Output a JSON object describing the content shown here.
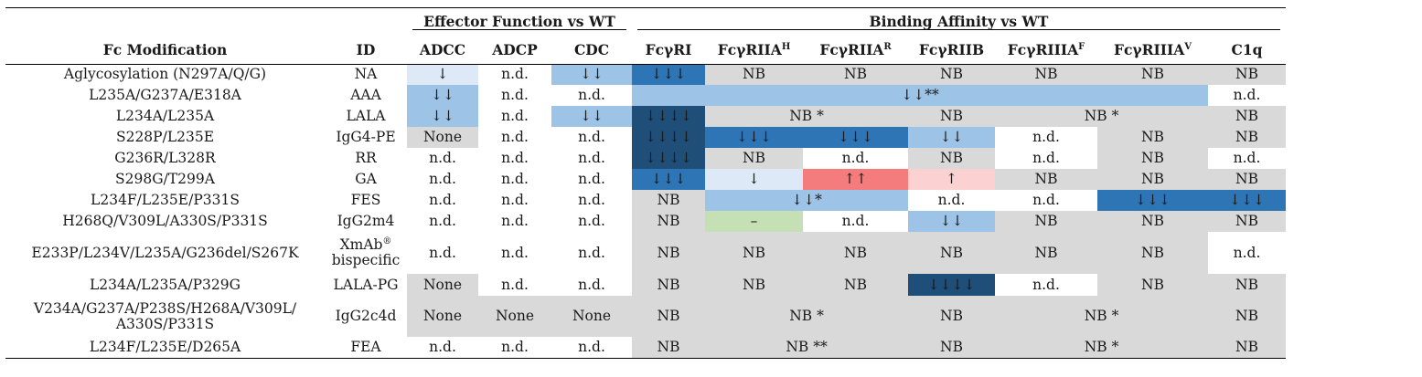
{
  "table": {
    "group_headers": {
      "effector": "Effector Function vs WT",
      "binding": "Binding Affinity vs WT"
    },
    "col_headers": {
      "mod": "Fc Modification",
      "id": "ID",
      "adcc": "ADCC",
      "adcp": "ADCP",
      "cdc": "CDC",
      "fcgri": "FcγRI",
      "fcgriia": "FcγRIIA",
      "fcgriia_h_sup": "H",
      "fcgriia_r_sup": "R",
      "fcgriib": "FcγRIIB",
      "fcgriiia": "FcγRIIIA",
      "fcgriiia_f_sup": "F",
      "fcgriiia_v_sup": "V",
      "c1q": "C1q"
    },
    "rows": [
      {
        "mod": "Aglycosylation (N297A/Q/G)",
        "id": "NA",
        "adcc": "↓",
        "adcp": "n.d.",
        "cdc": "↓↓",
        "fcgri": "↓↓↓",
        "fcgriia_h": "NB",
        "fcgriia_r": "NB",
        "fcgriib": "NB",
        "fcgriiia_f": "NB",
        "fcgriiia_v": "NB",
        "c1q": "NB"
      },
      {
        "mod": "L235A/G237A/E318A",
        "id": "AAA",
        "adcc": "↓↓",
        "adcp": "n.d.",
        "cdc": "n.d.",
        "span": "↓↓**",
        "c1q": "n.d."
      },
      {
        "mod": "L234A/L235A",
        "id": "LALA",
        "adcc": "↓↓",
        "adcp": "n.d.",
        "cdc": "↓↓",
        "fcgri": "↓↓↓↓",
        "fcgriia": "NB *",
        "fcgriib": "NB",
        "fcgriiia": "NB *",
        "c1q": "NB"
      },
      {
        "mod": "S228P/L235E",
        "id": "IgG4-PE",
        "adcc": "None",
        "adcp": "n.d.",
        "cdc": "n.d.",
        "fcgri": "↓↓↓↓",
        "fcgriia_h": "↓↓↓",
        "fcgriia_r": "↓↓↓",
        "fcgriib": "↓↓",
        "fcgriiia_f": "n.d.",
        "fcgriiia_v": "NB",
        "c1q": "NB"
      },
      {
        "mod": "G236R/L328R",
        "id": "RR",
        "adcc": "n.d.",
        "adcp": "n.d.",
        "cdc": "n.d.",
        "fcgri": "↓↓↓↓",
        "fcgriia_h": "NB",
        "fcgriia_r": "n.d.",
        "fcgriib": "NB",
        "fcgriiia_f": "n.d.",
        "fcgriiia_v": "NB",
        "c1q": "n.d."
      },
      {
        "mod": "S298G/T299A",
        "id": "GA",
        "adcc": "n.d.",
        "adcp": "n.d.",
        "cdc": "n.d.",
        "fcgri": "↓↓↓",
        "fcgriia_h": "↓",
        "fcgriia_r": "↑↑",
        "fcgriib": "↑",
        "fcgriiia_f": "NB",
        "fcgriiia_v": "NB",
        "c1q": "NB"
      },
      {
        "mod": "L234F/L235E/P331S",
        "id": "FES",
        "adcc": "n.d.",
        "adcp": "n.d.",
        "cdc": "n.d.",
        "fcgri": "NB",
        "fcgriia": "↓↓*",
        "fcgriib": "n.d.",
        "fcgriiia_f": "n.d.",
        "fcgriiia_v": "↓↓↓",
        "c1q": "↓↓↓"
      },
      {
        "mod": "H268Q/V309L/A330S/P331S",
        "id": "IgG2m4",
        "adcc": "n.d.",
        "adcp": "n.d.",
        "cdc": "n.d.",
        "fcgri": "NB",
        "fcgriia_h": "–",
        "fcgriia_r": "n.d.",
        "fcgriib": "↓↓",
        "fcgriiia_f": "NB",
        "fcgriiia_v": "NB",
        "c1q": "NB"
      },
      {
        "mod": "E233P/L234V/L235A/G236del/S267K",
        "id_line1": "XmAb",
        "id_sup": "®",
        "id_line2": "bispecific",
        "adcc": "n.d.",
        "adcp": "n.d.",
        "cdc": "n.d.",
        "fcgri": "NB",
        "fcgriia_h": "NB",
        "fcgriia_r": "NB",
        "fcgriib": "NB",
        "fcgriiia_f": "NB",
        "fcgriiia_v": "NB",
        "c1q": "n.d."
      },
      {
        "mod": "L234A/L235A/P329G",
        "id": "LALA-PG",
        "adcc": "None",
        "adcp": "n.d.",
        "cdc": "n.d.",
        "fcgri": "NB",
        "fcgriia_h": "NB",
        "fcgriia_r": "NB",
        "fcgriib": "↓↓↓↓",
        "fcgriiia_f": "n.d.",
        "fcgriiia_v": "NB",
        "c1q": "NB"
      },
      {
        "mod_line1": "V234A/G237A/P238S/H268A/V309L/",
        "mod_line2": "A330S/P331S",
        "id": "IgG2c4d",
        "adcc": "None",
        "adcp": "None",
        "cdc": "None",
        "fcgri": "NB",
        "fcgriia": "NB *",
        "fcgriib": "NB",
        "fcgriiia": "NB *",
        "c1q": "NB"
      },
      {
        "mod": "L234F/L235E/D265A",
        "id": "FEA",
        "adcc": "n.d.",
        "adcp": "n.d.",
        "cdc": "n.d.",
        "fcgri": "NB",
        "fcgriia": "NB **",
        "fcgriib": "NB",
        "fcgriiia": "NB *",
        "c1q": "NB"
      }
    ]
  },
  "colors": {
    "gray": "#d9d9d9",
    "blue_lightest": "#dde9f6",
    "blue_light": "#9dc3e6",
    "blue_mid": "#2e75b6",
    "blue_dark": "#1f4e79",
    "pink": "#fbd1d1",
    "red": "#f47c7c",
    "green": "#c5e0b4"
  }
}
